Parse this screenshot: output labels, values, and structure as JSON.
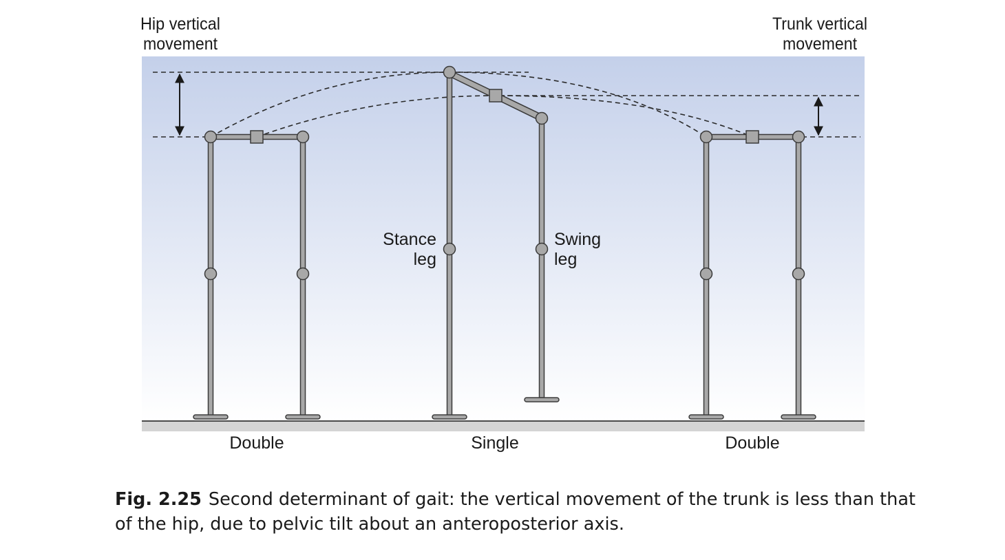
{
  "labels": {
    "hip_vertical": [
      "Hip vertical",
      "movement"
    ],
    "trunk_vertical": [
      "Trunk vertical",
      "movement"
    ],
    "stance_leg": [
      "Stance",
      "leg"
    ],
    "swing_leg": [
      "Swing",
      "leg"
    ],
    "phase_left": "Double",
    "phase_middle": "Single",
    "phase_right": "Double"
  },
  "caption": {
    "figure_number": "Fig. 2.25",
    "text": "Second determinant of gait: the vertical movement of the trunk is less than that of the hip, due to pelvic tilt about an anteroposterior axis."
  },
  "colors": {
    "sky_top": "#c4d0ea",
    "sky_bottom": "#ffffff",
    "ground": "#d4d4d4",
    "leg_fill": "#a8a8a8",
    "leg_outline": "#3a3a3a",
    "joint_fill": "#a8a8a8",
    "dash": "#2a2a2a"
  }
}
